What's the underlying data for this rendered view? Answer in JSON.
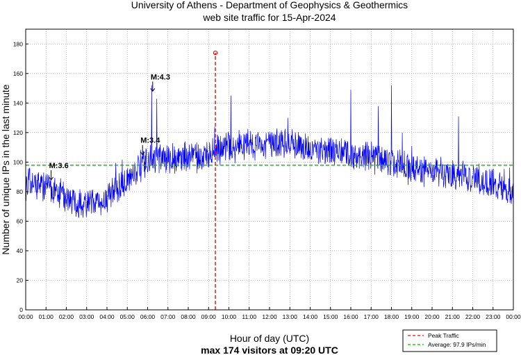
{
  "chart_data": {
    "type": "line",
    "title_line1": "University of Athens - Department of Geophysics & Geothermics",
    "title_line2": "web site traffic for 15-Apr-2024",
    "xlabel": "Hour of day (UTC)",
    "xlabel_sub": "max 174 visitors at 09:20 UTC",
    "ylabel": "Number of unique IPs in the last minute",
    "xlim_hours": [
      0,
      24
    ],
    "ylim": [
      0,
      190
    ],
    "yticks": [
      0,
      20,
      40,
      60,
      80,
      100,
      120,
      140,
      160,
      180
    ],
    "xtick_labels": [
      "00:00",
      "01:00",
      "02:00",
      "03:00",
      "04:00",
      "05:00",
      "06:00",
      "07:00",
      "08:00",
      "09:00",
      "10:00",
      "11:00",
      "12:00",
      "13:00",
      "14:00",
      "15:00",
      "16:00",
      "17:00",
      "18:00",
      "19:00",
      "20:00",
      "21:00",
      "22:00",
      "23:00",
      "00:00"
    ],
    "grid": true,
    "series": [
      {
        "name": "visitors",
        "color": "#0000ff",
        "x_hours": [
          0,
          0.5,
          1,
          1.5,
          2,
          2.5,
          3,
          3.5,
          4,
          4.5,
          5,
          5.5,
          6,
          6.5,
          7,
          7.5,
          8,
          8.5,
          9,
          9.5,
          10,
          10.5,
          11,
          11.5,
          12,
          12.5,
          13,
          13.5,
          14,
          14.5,
          15,
          15.5,
          16,
          16.5,
          17,
          17.5,
          18,
          18.5,
          19,
          19.5,
          20,
          20.5,
          21,
          21.5,
          22,
          22.5,
          23,
          23.5,
          24
        ],
        "values": [
          85,
          86,
          84,
          80,
          76,
          72,
          70,
          72,
          76,
          82,
          88,
          95,
          100,
          101,
          102,
          103,
          104,
          103,
          106,
          109,
          110,
          111,
          112,
          111,
          112,
          113,
          112,
          110,
          108,
          109,
          107,
          106,
          105,
          104,
          103,
          102,
          100,
          98,
          95,
          94,
          93,
          92,
          93,
          92,
          90,
          88,
          85,
          82,
          78
        ]
      }
    ],
    "spikes": [
      {
        "hour": 6.2,
        "value": 152
      },
      {
        "hour": 6.45,
        "value": 143
      },
      {
        "hour": 9.3,
        "value": 124
      },
      {
        "hour": 10.1,
        "value": 145
      },
      {
        "hour": 12.9,
        "value": 130
      },
      {
        "hour": 16.0,
        "value": 149
      },
      {
        "hour": 17.35,
        "value": 138
      },
      {
        "hour": 18.0,
        "value": 152
      },
      {
        "hour": 21.3,
        "value": 131
      }
    ],
    "average": {
      "value": 97.9,
      "color": "#00bb00",
      "label": "Average: 97.9 IPs/min"
    },
    "peak": {
      "hour": 9.333,
      "value": 174,
      "color": "#ff0000",
      "label": "Peak Traffic"
    },
    "annotations": [
      {
        "text": "M:3.6",
        "hour": 1.25,
        "arrow_to": 88
      },
      {
        "text": "M:3.4",
        "hour": 5.75,
        "arrow_to": 105
      },
      {
        "text": "M:4.3",
        "hour": 6.25,
        "arrow_to": 148
      }
    ],
    "legend_position": "bottom-right"
  }
}
